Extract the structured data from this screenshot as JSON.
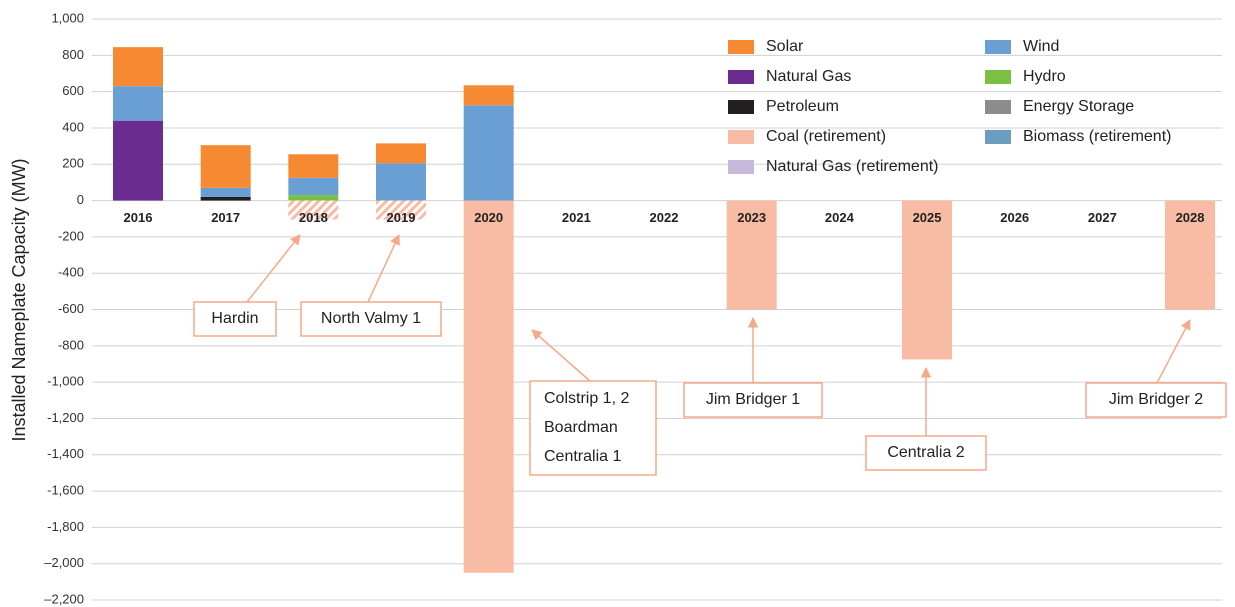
{
  "chart_data": {
    "type": "bar",
    "stacked": true,
    "y_label": "Installed Nameplate Capacity (MW)",
    "categories": [
      "2016",
      "2017",
      "2018",
      "2019",
      "2020",
      "2021",
      "2022",
      "2023",
      "2024",
      "2025",
      "2026",
      "2027",
      "2028"
    ],
    "series": [
      {
        "name": "Solar",
        "color": "#f58a33",
        "values": [
          215,
          235,
          130,
          110,
          110,
          0,
          0,
          0,
          0,
          0,
          0,
          0,
          0
        ]
      },
      {
        "name": "Wind",
        "color": "#6a9fd4",
        "values": [
          190,
          50,
          95,
          205,
          525,
          0,
          0,
          0,
          0,
          0,
          0,
          0,
          0
        ]
      },
      {
        "name": "Natural Gas",
        "color": "#6a2c91",
        "values": [
          440,
          0,
          0,
          0,
          0,
          0,
          0,
          0,
          0,
          0,
          0,
          0,
          0
        ]
      },
      {
        "name": "Hydro",
        "color": "#7ac143",
        "values": [
          0,
          0,
          30,
          0,
          0,
          0,
          0,
          0,
          0,
          0,
          0,
          0,
          0
        ]
      },
      {
        "name": "Petroleum",
        "color": "#231f20",
        "values": [
          0,
          20,
          0,
          0,
          0,
          0,
          0,
          0,
          0,
          0,
          0,
          0,
          0
        ]
      },
      {
        "name": "Energy Storage",
        "color": "#8c8c8c",
        "values": [
          0,
          0,
          0,
          0,
          0,
          0,
          0,
          0,
          0,
          0,
          0,
          0,
          0
        ]
      },
      {
        "name": "Coal (retirement)",
        "color": "#f8bba3",
        "values": [
          0,
          0,
          -105,
          -105,
          -2050,
          0,
          0,
          -600,
          0,
          -875,
          0,
          0,
          -600
        ],
        "hatched": [
          false,
          false,
          true,
          true,
          false,
          false,
          false,
          false,
          false,
          false,
          false,
          false,
          false
        ]
      },
      {
        "name": "Biomass (retirement)",
        "color": "#6b9dc0",
        "values": [
          0,
          0,
          0,
          0,
          0,
          0,
          0,
          0,
          0,
          0,
          0,
          0,
          0
        ]
      },
      {
        "name": "Natural Gas (retirement)",
        "color": "#c5b8da",
        "values": [
          0,
          0,
          0,
          0,
          0,
          0,
          0,
          0,
          0,
          0,
          0,
          0,
          0
        ]
      }
    ],
    "ylim": [
      -2200,
      1000
    ],
    "yticks": [
      {
        "value": 1000,
        "label": "1,000"
      },
      800,
      600,
      400,
      200,
      0,
      -200,
      -400,
      -600,
      -800,
      {
        "value": -1000,
        "label": "-1,000"
      },
      {
        "value": -1200,
        "label": "-1,200"
      },
      {
        "value": -1400,
        "label": "-1,400"
      },
      {
        "value": -1600,
        "label": "-1,600"
      },
      {
        "value": -1800,
        "label": "-1,800"
      },
      {
        "value": -2000,
        "label": "–2,000"
      },
      {
        "value": -2200,
        "label": "–2,200"
      }
    ],
    "grid": true,
    "legend": "upper right",
    "annotations": [
      {
        "text": [
          "Hardin"
        ]
      },
      {
        "text": [
          "North Valmy 1"
        ]
      },
      {
        "text": [
          "Colstrip 1, 2",
          "Boardman",
          "Centralia 1"
        ]
      },
      {
        "text": [
          "Jim Bridger 1"
        ]
      },
      {
        "text": [
          "Centralia 2"
        ]
      },
      {
        "text": [
          "Jim Bridger 2"
        ]
      }
    ]
  }
}
